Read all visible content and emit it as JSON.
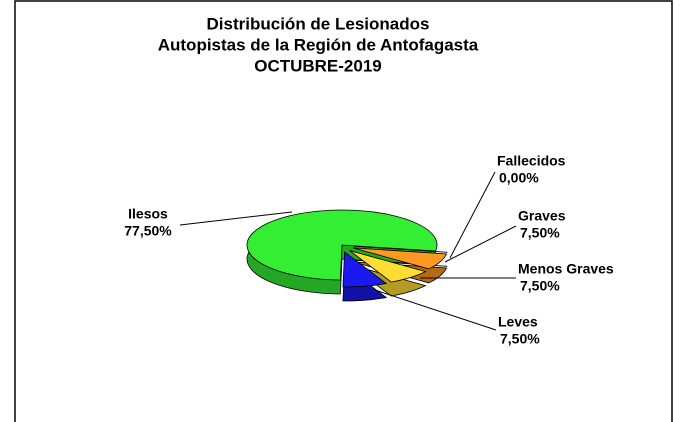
{
  "chart_data": {
    "type": "pie",
    "title": [
      "Distribución de Lesionados",
      "Autopistas de la Región de Antofagasta",
      "OCTUBRE-2019"
    ],
    "categories": [
      "Fallecidos",
      "Graves",
      "Menos Graves",
      "Leves",
      "Ilesos"
    ],
    "values": [
      0,
      7.5,
      7.5,
      7.5,
      77.5
    ],
    "value_labels": [
      "0,00%",
      "7,50%",
      "7,50%",
      "7,50%",
      "77,50%"
    ],
    "colors": [
      "#884400",
      "#ff9922",
      "#ffdd33",
      "#1a1aee",
      "#33ee33"
    ]
  }
}
